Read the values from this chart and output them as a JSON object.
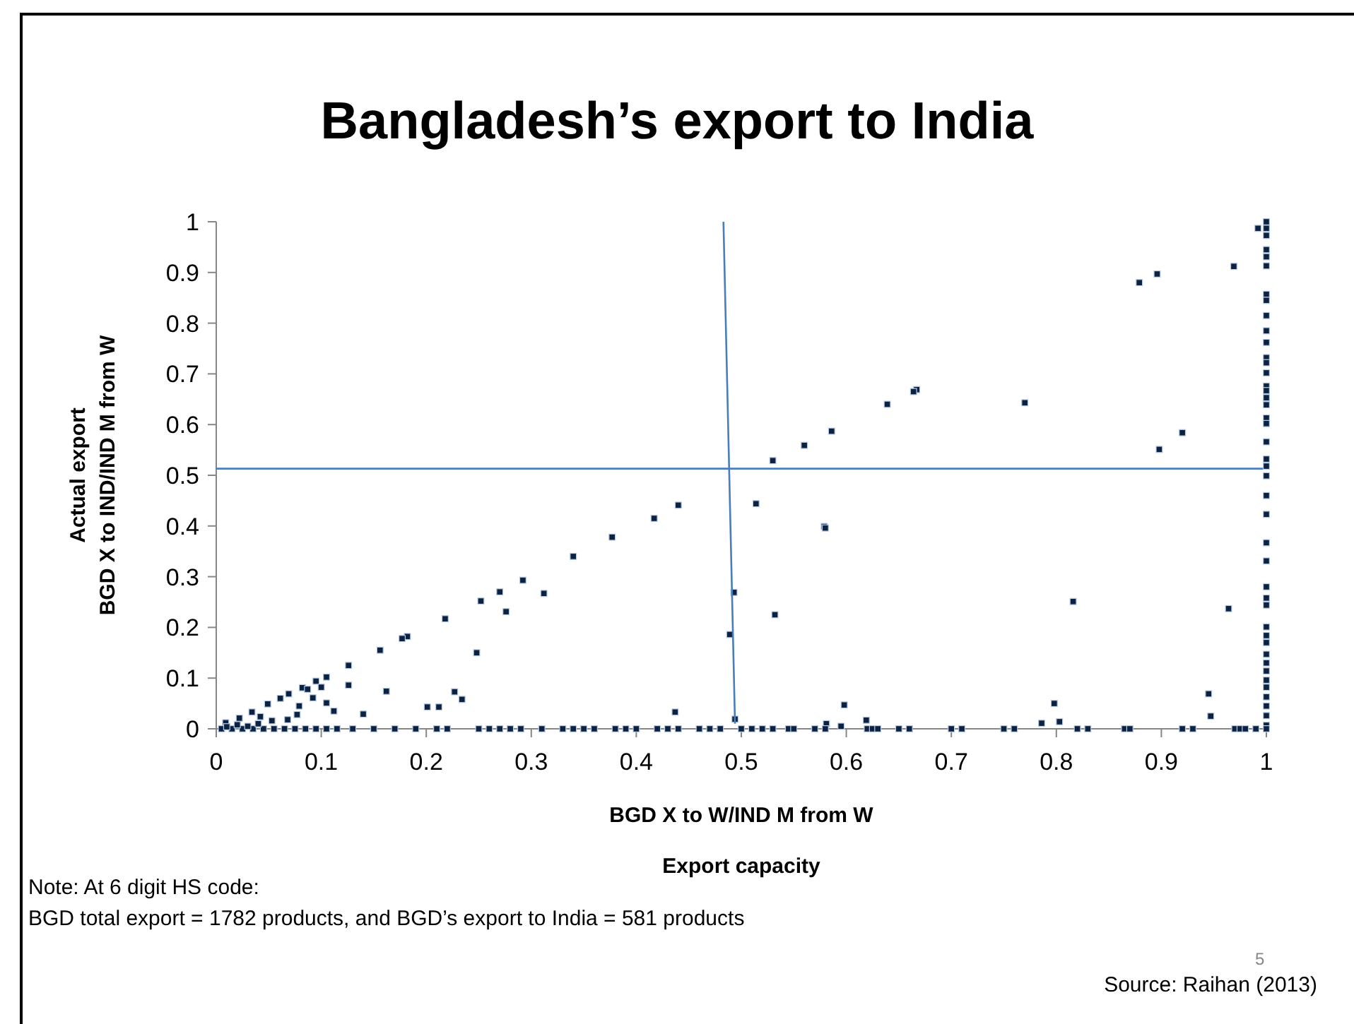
{
  "chart_data": {
    "type": "scatter",
    "title": "Bangladesh’s export to India",
    "xlabel": "BGD X to W/IND M from W\nExport capacity",
    "ylabel": "Actual export\nBGD X to IND/IND M from W",
    "xlim": [
      0,
      1
    ],
    "ylim": [
      0,
      1
    ],
    "xticks": [
      0,
      0.1,
      0.2,
      0.3,
      0.4,
      0.5,
      0.6,
      0.7,
      0.8,
      0.9,
      1
    ],
    "yticks": [
      0,
      0.1,
      0.2,
      0.3,
      0.4,
      0.5,
      0.6,
      0.7,
      0.8,
      0.9,
      1
    ],
    "grid": false,
    "marker": "square",
    "series": [
      {
        "color": "#0d2240",
        "x": [
          0.44,
          0.417,
          0.377,
          0.34,
          0.292,
          0.27,
          0.252,
          0.218,
          0.182,
          0.177,
          0.156,
          0.126,
          0.105,
          0.095,
          0.082,
          0.069,
          0.061,
          0.049,
          0.034,
          0.022,
          0.009,
          0.312,
          0.276,
          0.248,
          0.126,
          0.162,
          0.227,
          0.234,
          0.201,
          0.212,
          0.14,
          0.105,
          0.112,
          0.1,
          0.087,
          0.092,
          0.079,
          0.077,
          0.068,
          0.053,
          0.042,
          0.437,
          0.493,
          0.489,
          0.992,
          0.969,
          0.896,
          0.879,
          0.77,
          0.667,
          0.664,
          0.639,
          0.586,
          0.56,
          0.53,
          0.92,
          0.898,
          0.514,
          0.579,
          0.58,
          0.532,
          0.816,
          0.964,
          0.945,
          0.947,
          0.798,
          0.803,
          0.786,
          0.598,
          0.619,
          0.581,
          0.595,
          0.494
        ],
        "values": [
          0.441,
          0.415,
          0.378,
          0.34,
          0.293,
          0.27,
          0.252,
          0.217,
          0.182,
          0.178,
          0.155,
          0.125,
          0.102,
          0.094,
          0.081,
          0.069,
          0.06,
          0.049,
          0.033,
          0.021,
          0.012,
          0.267,
          0.231,
          0.15,
          0.086,
          0.074,
          0.073,
          0.058,
          0.043,
          0.043,
          0.029,
          0.051,
          0.035,
          0.082,
          0.078,
          0.061,
          0.045,
          0.028,
          0.018,
          0.016,
          0.024,
          0.033,
          0.269,
          0.186,
          0.987,
          0.912,
          0.897,
          0.88,
          0.643,
          0.669,
          0.665,
          0.64,
          0.587,
          0.559,
          0.529,
          0.584,
          0.551,
          0.444,
          0.399,
          0.396,
          0.225,
          0.251,
          0.237,
          0.069,
          0.025,
          0.05,
          0.014,
          0.011,
          0.047,
          0.017,
          0.01,
          0.005,
          0.019
        ]
      },
      {
        "color": "#0d2240",
        "x": [
          1,
          1,
          1,
          1,
          1,
          1,
          1,
          1,
          1,
          1,
          1,
          1,
          1,
          1,
          1,
          1,
          1,
          1,
          1,
          1,
          1,
          1,
          1,
          1,
          1,
          1,
          1,
          1,
          1,
          1,
          1,
          1,
          1,
          1,
          1,
          1,
          1,
          1,
          1,
          1,
          1,
          1,
          1,
          1
        ],
        "values": [
          1,
          0.987,
          0.973,
          0.945,
          0.931,
          0.913,
          0.857,
          0.845,
          0.815,
          0.785,
          0.762,
          0.732,
          0.722,
          0.702,
          0.676,
          0.667,
          0.653,
          0.639,
          0.613,
          0.602,
          0.566,
          0.532,
          0.518,
          0.499,
          0.46,
          0.423,
          0.367,
          0.331,
          0.28,
          0.258,
          0.244,
          0.201,
          0.184,
          0.17,
          0.147,
          0.13,
          0.114,
          0.096,
          0.082,
          0.063,
          0.045,
          0.026,
          0.007,
          0
        ]
      },
      {
        "color": "#0d2240",
        "x": [
          0.005,
          0.015,
          0.025,
          0.035,
          0.045,
          0.055,
          0.065,
          0.075,
          0.085,
          0.095,
          0.105,
          0.115,
          0.13,
          0.15,
          0.17,
          0.19,
          0.21,
          0.22,
          0.25,
          0.26,
          0.27,
          0.28,
          0.29,
          0.31,
          0.33,
          0.34,
          0.35,
          0.36,
          0.38,
          0.39,
          0.4,
          0.42,
          0.43,
          0.44,
          0.46,
          0.47,
          0.48,
          0.5,
          0.51,
          0.52,
          0.53,
          0.545,
          0.55,
          0.57,
          0.58,
          0.62,
          0.625,
          0.63,
          0.65,
          0.66,
          0.7,
          0.71,
          0.75,
          0.76,
          0.82,
          0.83,
          0.865,
          0.87,
          0.92,
          0.93,
          0.97,
          0.975,
          0.98,
          0.99,
          0.01,
          0.02,
          0.03,
          0.04
        ],
        "values": [
          0,
          0,
          0,
          0,
          0,
          0,
          0,
          0,
          0,
          0,
          0,
          0,
          0,
          0,
          0,
          0,
          0,
          0,
          0,
          0,
          0,
          0,
          0,
          0,
          0,
          0,
          0,
          0,
          0,
          0,
          0,
          0,
          0,
          0,
          0,
          0,
          0,
          0,
          0,
          0,
          0,
          0,
          0,
          0,
          0,
          0,
          0,
          0,
          0,
          0,
          0,
          0,
          0,
          0,
          0,
          0,
          0,
          0,
          0,
          0,
          0,
          0,
          0,
          0,
          0.004,
          0.008,
          0.005,
          0.01
        ]
      },
      {
        "type": "line",
        "marker": "none",
        "color": "#4a7ebb",
        "x": [
          0.483,
          0.494
        ],
        "values": [
          1,
          0.01
        ]
      }
    ],
    "ref_lines": [
      {
        "axis": "y",
        "value": 0.513,
        "color": "#4a7ebb"
      }
    ],
    "annotations": [
      "Note: At 6 digit HS code:",
      "BGD total export = 1782 products, and BGD’s export to India = 581 products",
      "5",
      "Source: Raihan (2013)"
    ]
  }
}
